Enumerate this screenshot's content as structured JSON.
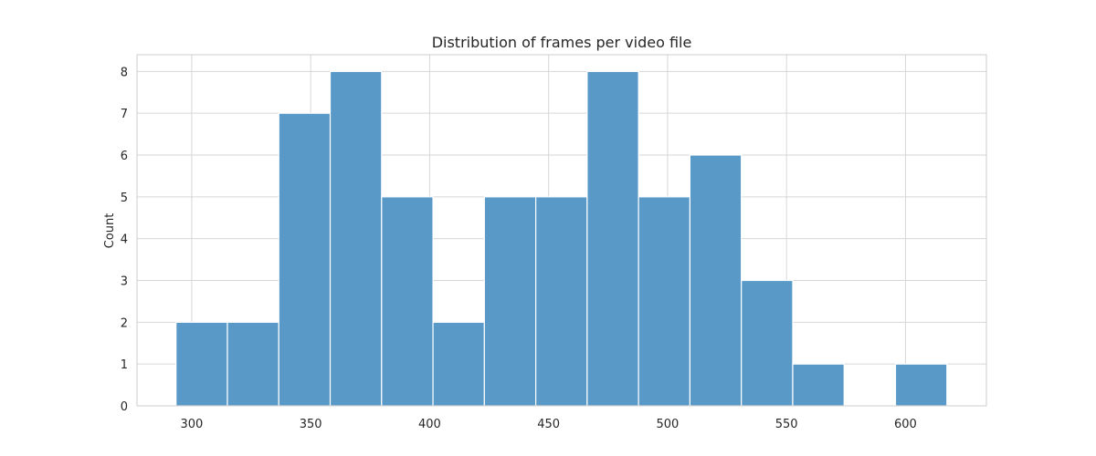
{
  "chart_data": {
    "type": "bar",
    "title": "Distribution of frames per video file",
    "xlabel": "",
    "ylabel": "Count",
    "xlim": [
      277,
      634
    ],
    "ylim": [
      0,
      8.4
    ],
    "xticks": [
      300,
      350,
      400,
      450,
      500,
      550,
      600
    ],
    "yticks": [
      0,
      1,
      2,
      3,
      4,
      5,
      6,
      7,
      8
    ],
    "bins": [
      {
        "start": 293.4,
        "end": 315.0,
        "value": 2
      },
      {
        "start": 315.0,
        "end": 336.6,
        "value": 2
      },
      {
        "start": 336.6,
        "end": 358.2,
        "value": 7
      },
      {
        "start": 358.2,
        "end": 379.8,
        "value": 8
      },
      {
        "start": 379.8,
        "end": 401.4,
        "value": 5
      },
      {
        "start": 401.4,
        "end": 423.0,
        "value": 2
      },
      {
        "start": 423.0,
        "end": 444.6,
        "value": 5
      },
      {
        "start": 444.6,
        "end": 466.2,
        "value": 5
      },
      {
        "start": 466.2,
        "end": 487.8,
        "value": 8
      },
      {
        "start": 487.8,
        "end": 509.4,
        "value": 5
      },
      {
        "start": 509.4,
        "end": 531.0,
        "value": 6
      },
      {
        "start": 531.0,
        "end": 552.6,
        "value": 3
      },
      {
        "start": 552.6,
        "end": 574.2,
        "value": 1
      },
      {
        "start": 574.2,
        "end": 595.8,
        "value": 0
      },
      {
        "start": 595.8,
        "end": 617.4,
        "value": 1
      }
    ],
    "grid": true,
    "bar_color": "#5899c8"
  }
}
